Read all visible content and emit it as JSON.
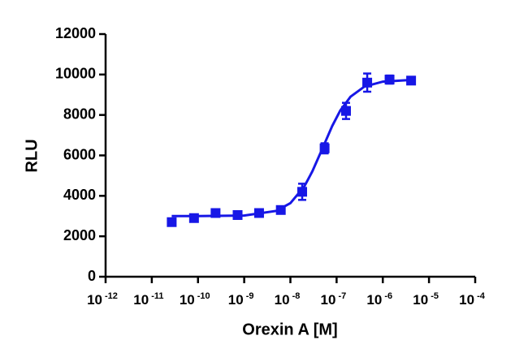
{
  "chart_data": {
    "type": "scatter",
    "xlabel": "Orexin A [M]",
    "ylabel": "RLU",
    "xscale": "log",
    "xlim": [
      1e-12,
      0.0001
    ],
    "ylim": [
      0,
      12000
    ],
    "xticks": [
      {
        "value": 1e-12,
        "label": "10",
        "exponent": "-12"
      },
      {
        "value": 1e-11,
        "label": "10",
        "exponent": "-11"
      },
      {
        "value": 1e-10,
        "label": "10",
        "exponent": "-10"
      },
      {
        "value": 1e-09,
        "label": "10",
        "exponent": "-9"
      },
      {
        "value": 1e-08,
        "label": "10",
        "exponent": "-8"
      },
      {
        "value": 1e-07,
        "label": "10",
        "exponent": "-7"
      },
      {
        "value": 1e-06,
        "label": "10",
        "exponent": "-6"
      },
      {
        "value": 1e-05,
        "label": "10",
        "exponent": "-5"
      },
      {
        "value": 0.0001,
        "label": "10",
        "exponent": "-4"
      }
    ],
    "yticks": [
      0,
      2000,
      4000,
      6000,
      8000,
      10000,
      12000
    ],
    "series": [
      {
        "color": "#1717e6",
        "x": [
          2.7e-11,
          8.2e-11,
          2.4e-10,
          7.2e-10,
          2.1e-09,
          6.2e-09,
          1.8e-08,
          5.5e-08,
          1.6e-07,
          4.6e-07,
          1.4e-06,
          4.1e-06
        ],
        "values": [
          2700,
          2900,
          3150,
          3050,
          3150,
          3300,
          4200,
          6350,
          8200,
          9600,
          9750,
          9700
        ],
        "errors": [
          100,
          80,
          100,
          80,
          80,
          80,
          400,
          250,
          400,
          450,
          200,
          100
        ]
      }
    ],
    "curve": {
      "color": "#1717e6",
      "x": [
        2.7e-11,
        1e-10,
        1e-09,
        5e-09,
        1e-08,
        2e-08,
        3e-08,
        5e-08,
        8e-08,
        1.2e-07,
        2e-07,
        4e-07,
        1e-06,
        4.1e-06
      ],
      "values": [
        3000,
        3001,
        3028,
        3259,
        3642,
        4464,
        5217,
        6375,
        7447,
        8220,
        8902,
        9402,
        9650,
        9733
      ]
    }
  }
}
